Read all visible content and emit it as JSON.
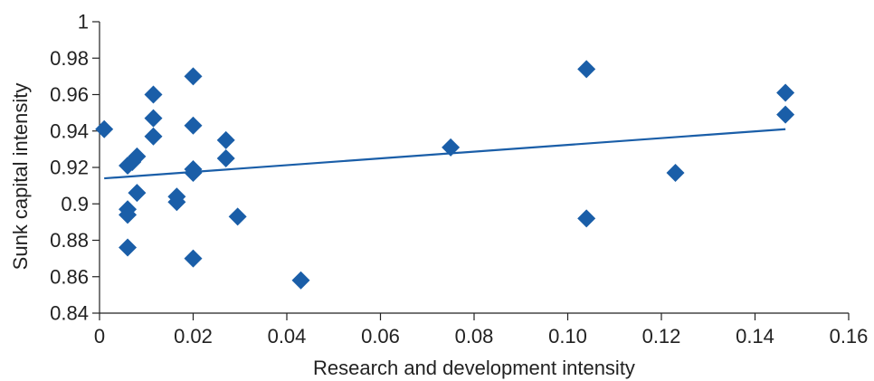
{
  "chart_data": {
    "type": "scatter",
    "title": "",
    "xlabel": "Research and development intensity",
    "ylabel": "Sunk capital intensity",
    "xlim": [
      0,
      0.16
    ],
    "ylim": [
      0.84,
      1.0
    ],
    "xticks": [
      0,
      0.02,
      0.04,
      0.06,
      0.08,
      0.1,
      0.12,
      0.14,
      0.16
    ],
    "xtick_labels": [
      "0",
      "0.02",
      "0.04",
      "0.06",
      "0.08",
      "0.10",
      "0.12",
      "0.14",
      "0.16"
    ],
    "yticks": [
      0.84,
      0.86,
      0.88,
      0.9,
      0.92,
      0.94,
      0.96,
      0.98,
      1.0
    ],
    "ytick_labels": [
      "0.84",
      "0.86",
      "0.88",
      "0.9",
      "0.92",
      "0.94",
      "0.96",
      "0.98",
      "1"
    ],
    "grid": false,
    "marker_color": "#1a5ea8",
    "trendline_color": "#1a5ea8",
    "points": [
      {
        "x": 0.001,
        "y": 0.941
      },
      {
        "x": 0.006,
        "y": 0.876
      },
      {
        "x": 0.006,
        "y": 0.894
      },
      {
        "x": 0.006,
        "y": 0.897
      },
      {
        "x": 0.006,
        "y": 0.921
      },
      {
        "x": 0.007,
        "y": 0.923
      },
      {
        "x": 0.008,
        "y": 0.926
      },
      {
        "x": 0.008,
        "y": 0.906
      },
      {
        "x": 0.0115,
        "y": 0.96
      },
      {
        "x": 0.0115,
        "y": 0.947
      },
      {
        "x": 0.0115,
        "y": 0.937
      },
      {
        "x": 0.0165,
        "y": 0.904
      },
      {
        "x": 0.0165,
        "y": 0.901
      },
      {
        "x": 0.02,
        "y": 0.97
      },
      {
        "x": 0.02,
        "y": 0.943
      },
      {
        "x": 0.02,
        "y": 0.919
      },
      {
        "x": 0.02,
        "y": 0.917
      },
      {
        "x": 0.02,
        "y": 0.87
      },
      {
        "x": 0.027,
        "y": 0.935
      },
      {
        "x": 0.027,
        "y": 0.925
      },
      {
        "x": 0.0295,
        "y": 0.893
      },
      {
        "x": 0.043,
        "y": 0.858
      },
      {
        "x": 0.075,
        "y": 0.931
      },
      {
        "x": 0.104,
        "y": 0.974
      },
      {
        "x": 0.104,
        "y": 0.892
      },
      {
        "x": 0.123,
        "y": 0.917
      },
      {
        "x": 0.1465,
        "y": 0.961
      },
      {
        "x": 0.1465,
        "y": 0.949
      }
    ],
    "trendline": {
      "x": [
        0.001,
        0.1465
      ],
      "y": [
        0.914,
        0.941
      ]
    }
  }
}
